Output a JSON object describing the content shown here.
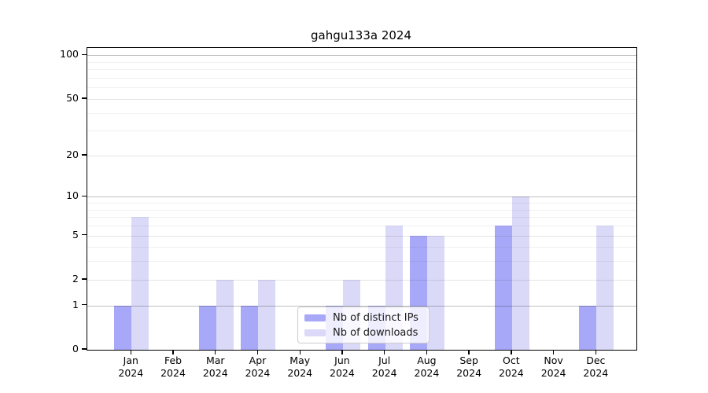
{
  "chart_data": {
    "type": "bar",
    "title": "gahgu133a 2024",
    "scale": "log1p",
    "categories": [
      "Jan",
      "Feb",
      "Mar",
      "Apr",
      "May",
      "Jun",
      "Jul",
      "Aug",
      "Sep",
      "Oct",
      "Nov",
      "Dec"
    ],
    "category_year": "2024",
    "series": [
      {
        "name": "Nb of distinct IPs",
        "color": "#a8a8f8",
        "values": [
          1,
          0,
          1,
          1,
          0,
          1,
          1,
          5,
          0,
          6,
          0,
          1
        ]
      },
      {
        "name": "Nb of downloads",
        "color": "#dadaf8",
        "values": [
          7,
          0,
          2,
          2,
          0,
          2,
          6,
          5,
          0,
          10,
          0,
          6
        ]
      }
    ],
    "ylim": [
      0,
      112
    ],
    "yticks": [
      0,
      1,
      2,
      5,
      10,
      20,
      50,
      100
    ],
    "gridlines_major": [
      1,
      10,
      100
    ],
    "gridlines_mid": [
      2,
      5,
      20,
      50
    ],
    "gridlines_minor": [
      3,
      4,
      6,
      7,
      8,
      9,
      30,
      40,
      60,
      70,
      80,
      90
    ],
    "grid": "on",
    "legend_position": "lower center",
    "xlabel": "",
    "ylabel": ""
  },
  "colors": {
    "distinct_ips_bar": "#a8a8f8",
    "downloads_bar": "#dadaf8",
    "spine": "#000000",
    "grid_major": "rgba(0,0,0,0.25)",
    "grid_mid": "rgba(0,0,0,0.10)",
    "grid_minor": "rgba(0,0,0,0.055)",
    "legend_background": "rgba(255,255,255,0.8)",
    "legend_border": "#cccccc"
  }
}
